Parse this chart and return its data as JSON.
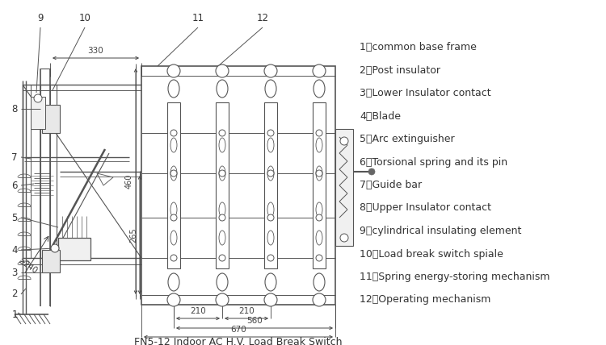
{
  "title": "FN5-12 Indoor AC H.V. Load Break Switch",
  "bg": "#ffffff",
  "lc": "#666666",
  "tc": "#333333",
  "legend_items": [
    "1、common base frame",
    "2、Post insulator",
    "3、Lower Insulator contact",
    "4、Blade",
    "5、Arc extinguisher",
    "6、Torsional spring and its pin",
    "7、Guide bar",
    "8、Upper Insulator contact",
    "9、cylindrical insulating element",
    "10、Load break switch spiale",
    "11、Spring energy-storing mechanism",
    "12、Operating mechanism"
  ],
  "figw": 7.5,
  "figh": 4.28,
  "dpi": 100
}
